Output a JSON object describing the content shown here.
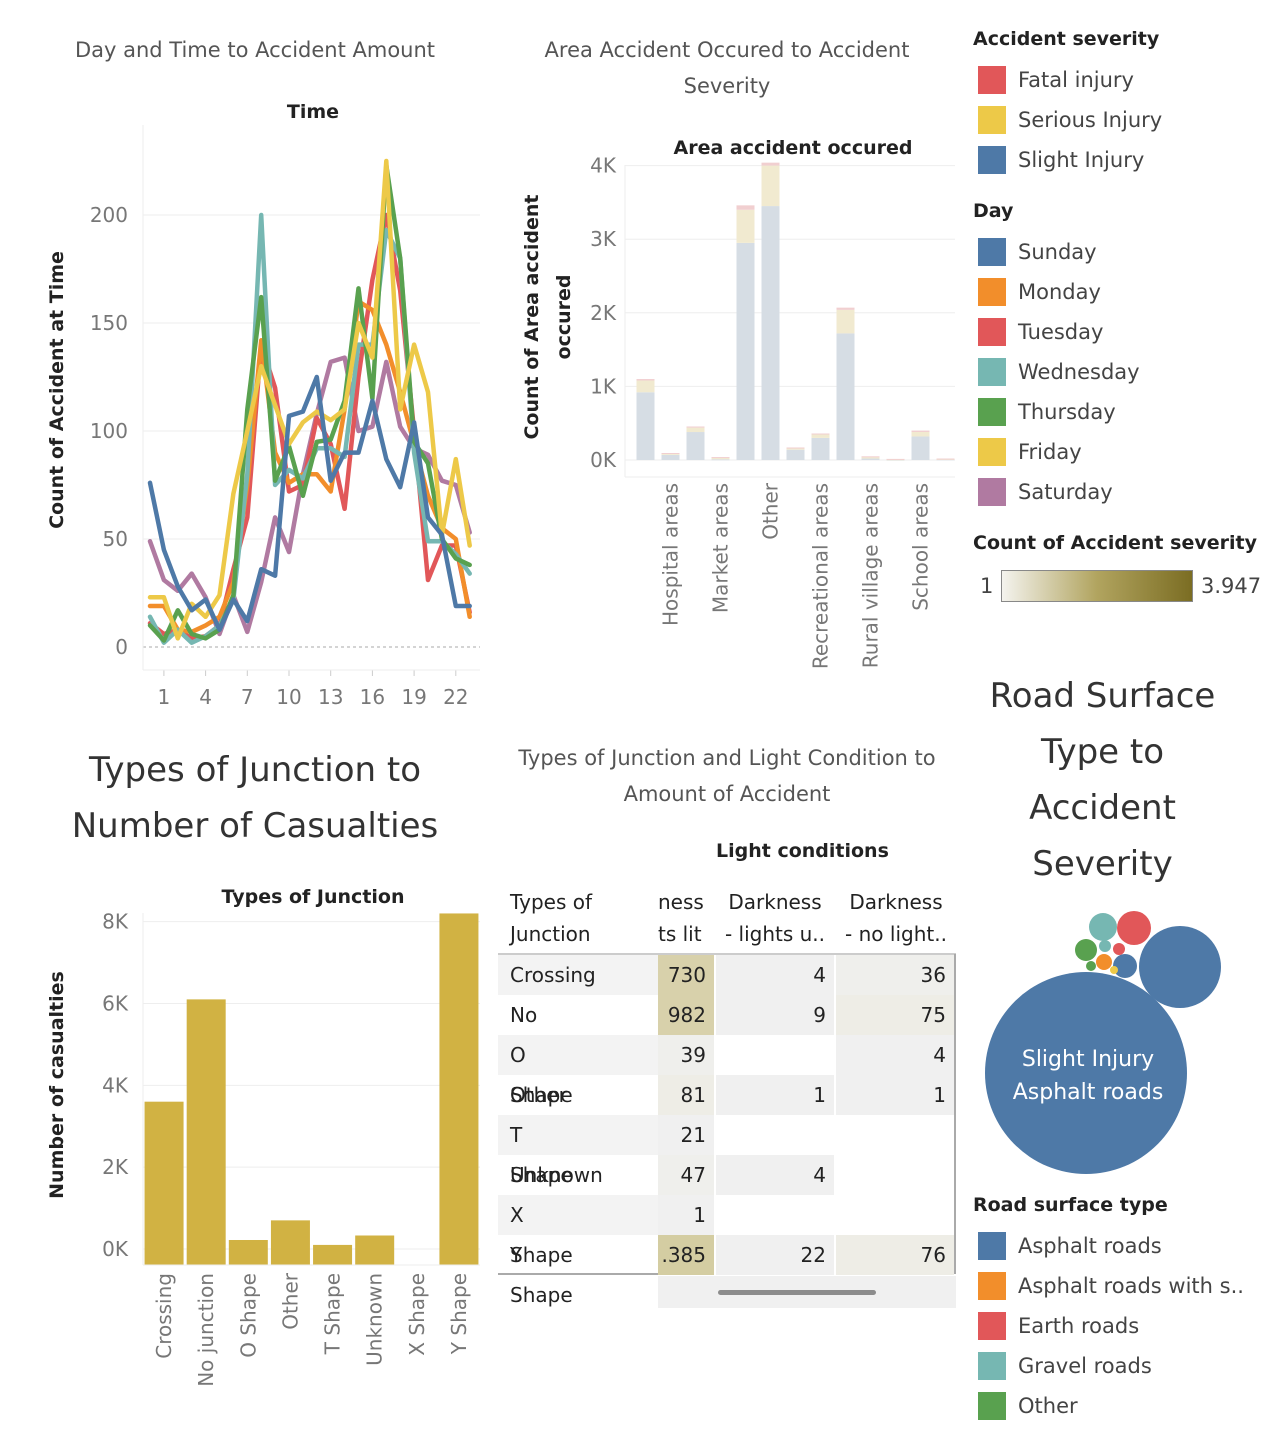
{
  "colors": {
    "fatal": "#e15759",
    "serious": "#edc948",
    "slight": "#4e79a7",
    "sunday": "#4e79a7",
    "monday": "#f28e2b",
    "tuesday": "#e15759",
    "wednesday": "#76b7b2",
    "thursday": "#59a14f",
    "friday": "#edc948",
    "saturday": "#b07aa1",
    "gold": "#d1b243",
    "bar_slight": "#d6dde4",
    "bar_serious": "#f1ead0",
    "bar_fatal": "#f1cfd0"
  },
  "sheets": {
    "day_time_title": "Day and Time to Accident Amount",
    "area_title": "Area Accident Occured to Accident Severity",
    "junction_title": "Types of Junction to Number of Casualties",
    "junction_light_title": "Types of Junction and Light Condition to Amount of Accident",
    "road_title": "Road Surface Type to Accident Severity"
  },
  "legends": {
    "severity": {
      "title": "Accident severity",
      "items": [
        "Fatal injury",
        "Serious Injury",
        "Slight Injury"
      ]
    },
    "day": {
      "title": "Day",
      "items": [
        "Sunday",
        "Monday",
        "Tuesday",
        "Wednesday",
        "Thursday",
        "Friday",
        "Saturday"
      ]
    },
    "count": {
      "title": "Count of Accident severity",
      "min": "1",
      "max": "3.947"
    },
    "road": {
      "title": "Road surface type",
      "items": [
        "Asphalt roads",
        "Asphalt roads with s..",
        "Earth roads",
        "Gravel roads",
        "Other"
      ]
    }
  },
  "chart_data": [
    {
      "type": "line",
      "title": "Day and Time to Accident Amount",
      "xlabel": "Time",
      "ylabel": "Count of Accident at Time",
      "x": [
        0,
        1,
        2,
        3,
        4,
        5,
        6,
        7,
        8,
        9,
        10,
        11,
        12,
        13,
        14,
        15,
        16,
        17,
        18,
        19,
        20,
        21,
        22,
        23
      ],
      "x_ticks": [
        "1",
        "4",
        "7",
        "10",
        "13",
        "16",
        "19",
        "22"
      ],
      "y_ticks": [
        "0",
        "50",
        "100",
        "150",
        "200"
      ],
      "ylim": [
        0,
        235
      ],
      "series": [
        {
          "name": "Sunday",
          "values": [
            76,
            45,
            28,
            17,
            22,
            8,
            22,
            12,
            36,
            33,
            107,
            109,
            125,
            77,
            90,
            90,
            114,
            87,
            74,
            104,
            60,
            52,
            19,
            19
          ]
        },
        {
          "name": "Monday",
          "values": [
            19,
            19,
            8,
            7,
            10,
            14,
            30,
            75,
            142,
            90,
            76,
            80,
            80,
            72,
            110,
            160,
            156,
            140,
            118,
            94,
            70,
            55,
            50,
            14
          ]
        },
        {
          "name": "Tuesday",
          "values": [
            11,
            6,
            8,
            4,
            5,
            10,
            36,
            60,
            140,
            120,
            72,
            75,
            106,
            94,
            64,
            125,
            170,
            200,
            165,
            100,
            31,
            47,
            47,
            16
          ]
        },
        {
          "name": "Wednesday",
          "values": [
            14,
            2,
            8,
            2,
            5,
            10,
            22,
            80,
            200,
            75,
            82,
            78,
            92,
            92,
            88,
            140,
            140,
            193,
            180,
            90,
            49,
            49,
            43,
            34
          ]
        },
        {
          "name": "Thursday",
          "values": [
            10,
            3,
            17,
            6,
            4,
            8,
            24,
            110,
            162,
            77,
            93,
            70,
            95,
            96,
            114,
            166,
            115,
            223,
            180,
            95,
            85,
            50,
            41,
            38
          ]
        },
        {
          "name": "Friday",
          "values": [
            23,
            23,
            4,
            20,
            14,
            24,
            71,
            100,
            130,
            112,
            94,
            104,
            109,
            105,
            110,
            150,
            134,
            225,
            110,
            140,
            118,
            52,
            87,
            47
          ]
        },
        {
          "name": "Saturday",
          "values": [
            49,
            31,
            26,
            34,
            23,
            6,
            24,
            7,
            30,
            60,
            44,
            80,
            108,
            132,
            134,
            100,
            102,
            132,
            102,
            92,
            89,
            77,
            75,
            53
          ]
        }
      ]
    },
    {
      "type": "bar",
      "title": "Area Accident Occured to Accident Severity",
      "xlabel": "Area accident occured",
      "ylabel": "Count of Area accident occured",
      "stacked": true,
      "categories": [
        "",
        "Hospital areas",
        "",
        "Market areas",
        "",
        "Other",
        "",
        "Recreational areas",
        "",
        "Rural village areas",
        "",
        "School areas",
        ""
      ],
      "y_ticks": [
        "0K",
        "1K",
        "2K",
        "3K",
        "4K"
      ],
      "ylim": [
        -200,
        4300
      ],
      "series": [
        {
          "name": "Slight Injury",
          "values": [
            920,
            70,
            380,
            10,
            2950,
            3450,
            140,
            300,
            1720,
            20,
            5,
            320,
            10
          ]
        },
        {
          "name": "Serious Injury",
          "values": [
            160,
            20,
            60,
            20,
            450,
            550,
            25,
            50,
            320,
            20,
            5,
            60,
            5
          ]
        },
        {
          "name": "Fatal injury",
          "values": [
            20,
            5,
            15,
            10,
            60,
            40,
            5,
            10,
            30,
            10,
            5,
            20,
            5
          ]
        }
      ]
    },
    {
      "type": "bar",
      "title": "Types of Junction to Number of Casualties",
      "xlabel": "Types of Junction",
      "ylabel": "Number of casualties",
      "categories": [
        "Crossing",
        "No junction",
        "O Shape",
        "Other",
        "T Shape",
        "Unknown",
        "X Shape",
        "Y Shape"
      ],
      "values": [
        3600,
        6100,
        220,
        700,
        100,
        330,
        0,
        8200
      ],
      "y_ticks": [
        "0K",
        "2K",
        "4K",
        "6K",
        "8K"
      ],
      "ylim": [
        -600,
        8800
      ]
    },
    {
      "type": "table",
      "title": "Types of Junction and Light Condition to Amount of Accident",
      "column_group": "Light conditions",
      "row_header": "Types of Junction",
      "columns": [
        "ness\nts lit",
        "Darkness\n- lights u..",
        "Darkness\n- no light.."
      ],
      "rows": [
        {
          "label": "Crossing",
          "values": [
            "730",
            "4",
            "36"
          ]
        },
        {
          "label": "No junction",
          "values": [
            "982",
            "9",
            "75"
          ]
        },
        {
          "label": "O Shape",
          "values": [
            "39",
            "",
            "4"
          ]
        },
        {
          "label": "Other",
          "values": [
            "81",
            "1",
            "1"
          ]
        },
        {
          "label": "T Shape",
          "values": [
            "21",
            "",
            ""
          ]
        },
        {
          "label": "Unknown",
          "values": [
            "47",
            "4",
            ""
          ]
        },
        {
          "label": "X Shape",
          "values": [
            "1",
            "",
            ""
          ]
        },
        {
          "label": "Y Shape",
          "values": [
            ".385",
            "22",
            "76"
          ]
        }
      ]
    }
  ],
  "bubble": {
    "big_label_1": "Slight Injury",
    "big_label_2": "Asphalt roads"
  }
}
